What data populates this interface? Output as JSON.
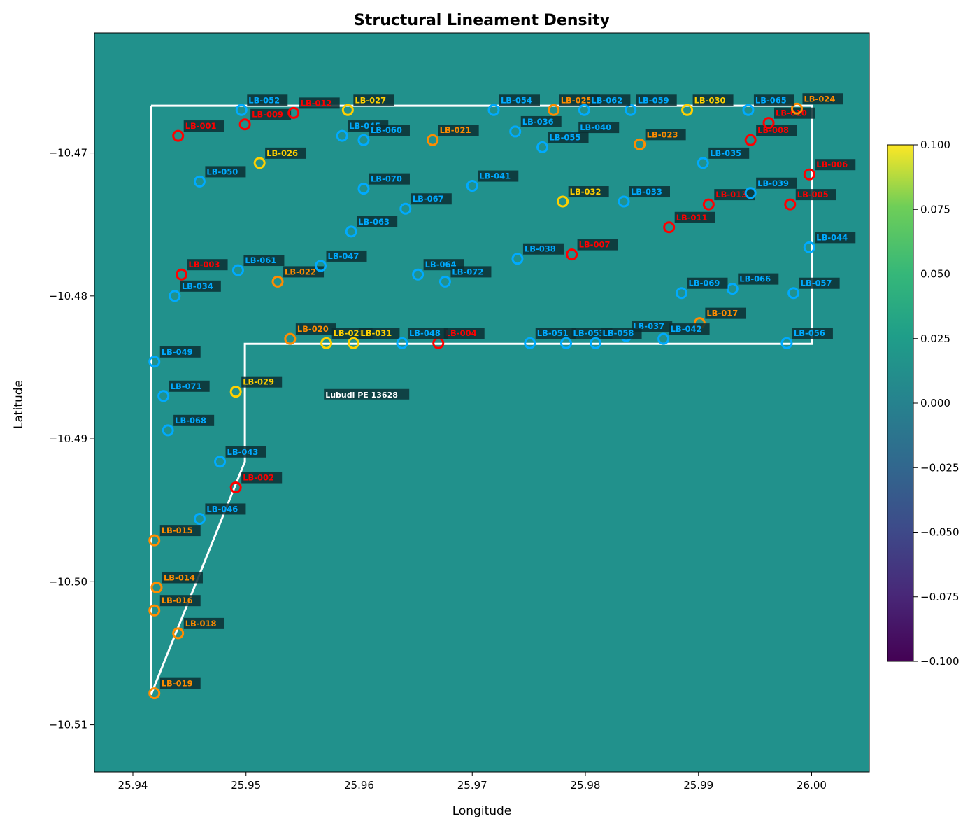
{
  "chart_data": {
    "type": "scatter",
    "title": "Structural Lineament Density",
    "xlabel": "Longitude",
    "ylabel": "Latitude",
    "xlim": [
      25.9366,
      26.0051
    ],
    "ylim": [
      -10.5133,
      -10.4616
    ],
    "xticks": [
      25.94,
      25.95,
      25.96,
      25.97,
      25.98,
      25.99,
      26.0
    ],
    "xtick_labels": [
      "25.94",
      "25.95",
      "25.96",
      "25.97",
      "25.98",
      "25.99",
      "26.00"
    ],
    "yticks": [
      -10.47,
      -10.48,
      -10.49,
      -10.5,
      -10.51
    ],
    "ytick_labels": [
      "−10.47",
      "−10.48",
      "−10.49",
      "−10.50",
      "−10.51"
    ],
    "grid": false,
    "background_value": 0.0,
    "colorbar": {
      "colormap": "viridis",
      "range": [
        -0.1,
        0.1
      ],
      "ticks": [
        0.1,
        0.075,
        0.05,
        0.025,
        0,
        -0.025,
        -0.05,
        -0.075,
        -0.1
      ],
      "tick_labels": [
        "0.100",
        "0.075",
        "0.050",
        "0.025",
        "0.000",
        "−0.025",
        "−0.050",
        "−0.075",
        "−0.100"
      ]
    },
    "boundary": [
      [
        25.9416,
        -10.4667
      ],
      [
        26.0,
        -10.4667
      ],
      [
        26.0,
        -10.48335
      ],
      [
        25.9499,
        -10.48335
      ],
      [
        25.9499,
        -10.4916
      ],
      [
        25.9416,
        -10.5079
      ],
      [
        25.9416,
        -10.4667
      ]
    ],
    "annotation": {
      "text": "Lubudi PE 13628",
      "x": 25.9606,
      "y": -10.4869
    },
    "colors": {
      "red": "#ff0000",
      "orange": "#ff8c00",
      "yellow": "#ffd000",
      "blue": "#00aaff"
    },
    "points": [
      {
        "id": "LB-001",
        "x": 25.944,
        "y": -10.4688,
        "c": "red"
      },
      {
        "id": "LB-002",
        "x": 25.9491,
        "y": -10.4934,
        "c": "red"
      },
      {
        "id": "LB-003",
        "x": 25.9443,
        "y": -10.4785,
        "c": "red"
      },
      {
        "id": "LB-004",
        "x": 25.967,
        "y": -10.4833,
        "c": "red"
      },
      {
        "id": "LB-005",
        "x": 25.9981,
        "y": -10.4736,
        "c": "red"
      },
      {
        "id": "LB-006",
        "x": 25.9998,
        "y": -10.4715,
        "c": "red"
      },
      {
        "id": "LB-007",
        "x": 25.9788,
        "y": -10.4771,
        "c": "red"
      },
      {
        "id": "LB-008",
        "x": 25.9946,
        "y": -10.4691,
        "c": "red"
      },
      {
        "id": "LB-009",
        "x": 25.9499,
        "y": -10.468,
        "c": "red"
      },
      {
        "id": "LB-010",
        "x": 25.9962,
        "y": -10.4679,
        "c": "red"
      },
      {
        "id": "LB-011",
        "x": 25.9874,
        "y": -10.4752,
        "c": "red"
      },
      {
        "id": "LB-012",
        "x": 25.9542,
        "y": -10.4672,
        "c": "red"
      },
      {
        "id": "LB-013",
        "x": 25.9909,
        "y": -10.4736,
        "c": "red"
      },
      {
        "id": "LB-014",
        "x": 25.9421,
        "y": -10.5004,
        "c": "orange"
      },
      {
        "id": "LB-015",
        "x": 25.9419,
        "y": -10.4971,
        "c": "orange"
      },
      {
        "id": "LB-016",
        "x": 25.9419,
        "y": -10.502,
        "c": "orange"
      },
      {
        "id": "LB-017",
        "x": 25.9901,
        "y": -10.4819,
        "c": "orange"
      },
      {
        "id": "LB-018",
        "x": 25.944,
        "y": -10.5036,
        "c": "orange"
      },
      {
        "id": "LB-019",
        "x": 25.9419,
        "y": -10.5078,
        "c": "orange"
      },
      {
        "id": "LB-020",
        "x": 25.9539,
        "y": -10.483,
        "c": "orange"
      },
      {
        "id": "LB-021",
        "x": 25.9665,
        "y": -10.4691,
        "c": "orange"
      },
      {
        "id": "LB-022",
        "x": 25.9528,
        "y": -10.479,
        "c": "orange"
      },
      {
        "id": "LB-023",
        "x": 25.9848,
        "y": -10.4694,
        "c": "orange"
      },
      {
        "id": "LB-024",
        "x": 25.9987,
        "y": -10.4669,
        "c": "orange"
      },
      {
        "id": "LB-025",
        "x": 25.9772,
        "y": -10.467,
        "c": "orange"
      },
      {
        "id": "LB-026",
        "x": 25.9512,
        "y": -10.4707,
        "c": "yellow"
      },
      {
        "id": "LB-027",
        "x": 25.959,
        "y": -10.467,
        "c": "yellow"
      },
      {
        "id": "LB-028",
        "x": 25.9571,
        "y": -10.4833,
        "c": "yellow"
      },
      {
        "id": "LB-029",
        "x": 25.9491,
        "y": -10.4867,
        "c": "yellow"
      },
      {
        "id": "LB-030",
        "x": 25.989,
        "y": -10.467,
        "c": "yellow"
      },
      {
        "id": "LB-031",
        "x": 25.9595,
        "y": -10.4833,
        "c": "yellow"
      },
      {
        "id": "LB-032",
        "x": 25.978,
        "y": -10.4734,
        "c": "yellow"
      },
      {
        "id": "LB-033",
        "x": 25.9834,
        "y": -10.4734,
        "c": "blue"
      },
      {
        "id": "LB-034",
        "x": 25.9437,
        "y": -10.48,
        "c": "blue"
      },
      {
        "id": "LB-035",
        "x": 25.9904,
        "y": -10.4707,
        "c": "blue"
      },
      {
        "id": "LB-036",
        "x": 25.9738,
        "y": -10.4685,
        "c": "blue"
      },
      {
        "id": "LB-037",
        "x": 25.9836,
        "y": -10.4828,
        "c": "blue"
      },
      {
        "id": "LB-038",
        "x": 25.974,
        "y": -10.4774,
        "c": "blue"
      },
      {
        "id": "LB-039",
        "x": 25.9946,
        "y": -10.4728,
        "c": "blue"
      },
      {
        "id": "LB-040",
        "x": 25.9789,
        "y": -10.4689,
        "c": "blue"
      },
      {
        "id": "LB-041",
        "x": 25.97,
        "y": -10.4723,
        "c": "blue"
      },
      {
        "id": "LB-042",
        "x": 25.9869,
        "y": -10.483,
        "c": "blue"
      },
      {
        "id": "LB-043",
        "x": 25.9477,
        "y": -10.4916,
        "c": "blue"
      },
      {
        "id": "LB-044",
        "x": 25.9998,
        "y": -10.4766,
        "c": "blue"
      },
      {
        "id": "LB-045",
        "x": 25.9585,
        "y": -10.4688,
        "c": "blue"
      },
      {
        "id": "LB-046",
        "x": 25.9459,
        "y": -10.4956,
        "c": "blue"
      },
      {
        "id": "LB-047",
        "x": 25.9566,
        "y": -10.4779,
        "c": "blue"
      },
      {
        "id": "LB-048",
        "x": 25.9638,
        "y": -10.4833,
        "c": "blue"
      },
      {
        "id": "LB-049",
        "x": 25.9419,
        "y": -10.4846,
        "c": "blue"
      },
      {
        "id": "LB-050",
        "x": 25.9459,
        "y": -10.472,
        "c": "blue"
      },
      {
        "id": "LB-051",
        "x": 25.9751,
        "y": -10.4833,
        "c": "blue"
      },
      {
        "id": "LB-052",
        "x": 25.9496,
        "y": -10.467,
        "c": "blue"
      },
      {
        "id": "LB-053",
        "x": 25.9783,
        "y": -10.4833,
        "c": "blue"
      },
      {
        "id": "LB-054",
        "x": 25.9719,
        "y": -10.467,
        "c": "blue"
      },
      {
        "id": "LB-055",
        "x": 25.9762,
        "y": -10.4696,
        "c": "blue"
      },
      {
        "id": "LB-056",
        "x": 25.9978,
        "y": -10.4833,
        "c": "blue"
      },
      {
        "id": "LB-057",
        "x": 25.9984,
        "y": -10.4798,
        "c": "blue"
      },
      {
        "id": "LB-058",
        "x": 25.9809,
        "y": -10.4833,
        "c": "blue"
      },
      {
        "id": "LB-059",
        "x": 25.984,
        "y": -10.467,
        "c": "blue"
      },
      {
        "id": "LB-060",
        "x": 25.9604,
        "y": -10.4691,
        "c": "blue"
      },
      {
        "id": "LB-061",
        "x": 25.9493,
        "y": -10.4782,
        "c": "blue"
      },
      {
        "id": "LB-062",
        "x": 25.9799,
        "y": -10.467,
        "c": "blue"
      },
      {
        "id": "LB-063",
        "x": 25.9593,
        "y": -10.4755,
        "c": "blue"
      },
      {
        "id": "LB-064",
        "x": 25.9652,
        "y": -10.4785,
        "c": "blue"
      },
      {
        "id": "LB-065",
        "x": 25.9944,
        "y": -10.467,
        "c": "blue"
      },
      {
        "id": "LB-066",
        "x": 25.993,
        "y": -10.4795,
        "c": "blue"
      },
      {
        "id": "LB-067",
        "x": 25.9641,
        "y": -10.4739,
        "c": "blue"
      },
      {
        "id": "LB-068",
        "x": 25.9431,
        "y": -10.4894,
        "c": "blue"
      },
      {
        "id": "LB-069",
        "x": 25.9885,
        "y": -10.4798,
        "c": "blue"
      },
      {
        "id": "LB-070",
        "x": 25.9604,
        "y": -10.4725,
        "c": "blue"
      },
      {
        "id": "LB-071",
        "x": 25.9427,
        "y": -10.487,
        "c": "blue"
      },
      {
        "id": "LB-072",
        "x": 25.9676,
        "y": -10.479,
        "c": "blue"
      }
    ]
  }
}
